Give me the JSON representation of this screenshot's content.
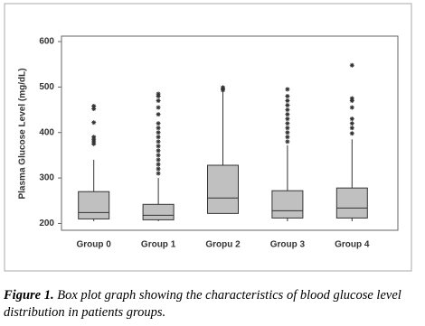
{
  "chart_data": {
    "type": "box",
    "y_label": "Plasma Glucose Level (mg/dL)",
    "categories": [
      "Group 0",
      "Group 1",
      "Gropu 2",
      "Group 3",
      "Group 4"
    ],
    "boxes": [
      {
        "min": 205,
        "q1": 210,
        "median": 224,
        "q3": 270,
        "max": 340,
        "outliers": [
          375,
          380,
          385,
          390,
          422,
          452,
          458
        ]
      },
      {
        "min": 205,
        "q1": 208,
        "median": 218,
        "q3": 242,
        "max": 300,
        "outliers": [
          310,
          320,
          330,
          340,
          350,
          360,
          370,
          380,
          390,
          400,
          410,
          420,
          440,
          455,
          470,
          480,
          485
        ]
      },
      {
        "min": 222,
        "q1": 222,
        "median": 256,
        "q3": 328,
        "max": 490,
        "outliers": [
          493,
          496,
          499
        ]
      },
      {
        "min": 205,
        "q1": 212,
        "median": 228,
        "q3": 272,
        "max": 372,
        "outliers": [
          380,
          390,
          400,
          410,
          420,
          430,
          440,
          450,
          460,
          470,
          480,
          495
        ]
      },
      {
        "min": 205,
        "q1": 212,
        "median": 234,
        "q3": 278,
        "max": 385,
        "outliers": [
          398,
          410,
          420,
          430,
          455,
          470,
          475,
          548
        ]
      }
    ],
    "box_color": "#c0c0c0",
    "ylim": [
      185,
      612
    ],
    "yticks": [
      200,
      300,
      400,
      500,
      600
    ]
  },
  "caption": {
    "label": "Figure 1.",
    "text": "Box plot graph showing the characteristics of blood glucose level distribution in patients groups."
  }
}
